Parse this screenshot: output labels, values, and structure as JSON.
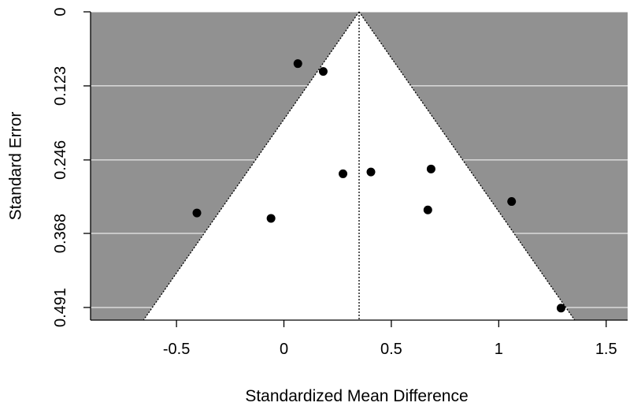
{
  "chart_data": {
    "type": "scatter",
    "subtype": "funnel-plot",
    "title": "",
    "xlabel": "Standardized Mean Difference",
    "ylabel": "Standard Error",
    "xlim": [
      -0.9,
      1.6
    ],
    "ylim": [
      0,
      0.512
    ],
    "y_reversed": true,
    "x_ticks": [
      -0.5,
      0,
      0.5,
      1,
      1.5
    ],
    "x_tick_labels": [
      "-0.5",
      "0",
      "0.5",
      "1",
      "1.5"
    ],
    "y_ticks": [
      0,
      0.123,
      0.246,
      0.368,
      0.491
    ],
    "y_tick_labels": [
      "0",
      "0.123",
      "0.246",
      "0.368",
      "0.491"
    ],
    "center_estimate": 0.35,
    "funnel_multiplier": 1.96,
    "colors": {
      "outside_region": "#919191",
      "inside_region": "#ffffff",
      "gridline": "#ffffff",
      "point": "#000000"
    },
    "points": [
      {
        "x": 0.065,
        "y": 0.086
      },
      {
        "x": 0.183,
        "y": 0.099
      },
      {
        "x": 0.275,
        "y": 0.269
      },
      {
        "x": 0.405,
        "y": 0.266
      },
      {
        "x": 0.685,
        "y": 0.261
      },
      {
        "x": 0.67,
        "y": 0.329
      },
      {
        "x": 1.06,
        "y": 0.315
      },
      {
        "x": -0.405,
        "y": 0.334
      },
      {
        "x": -0.06,
        "y": 0.343
      },
      {
        "x": 1.29,
        "y": 0.492
      }
    ]
  }
}
